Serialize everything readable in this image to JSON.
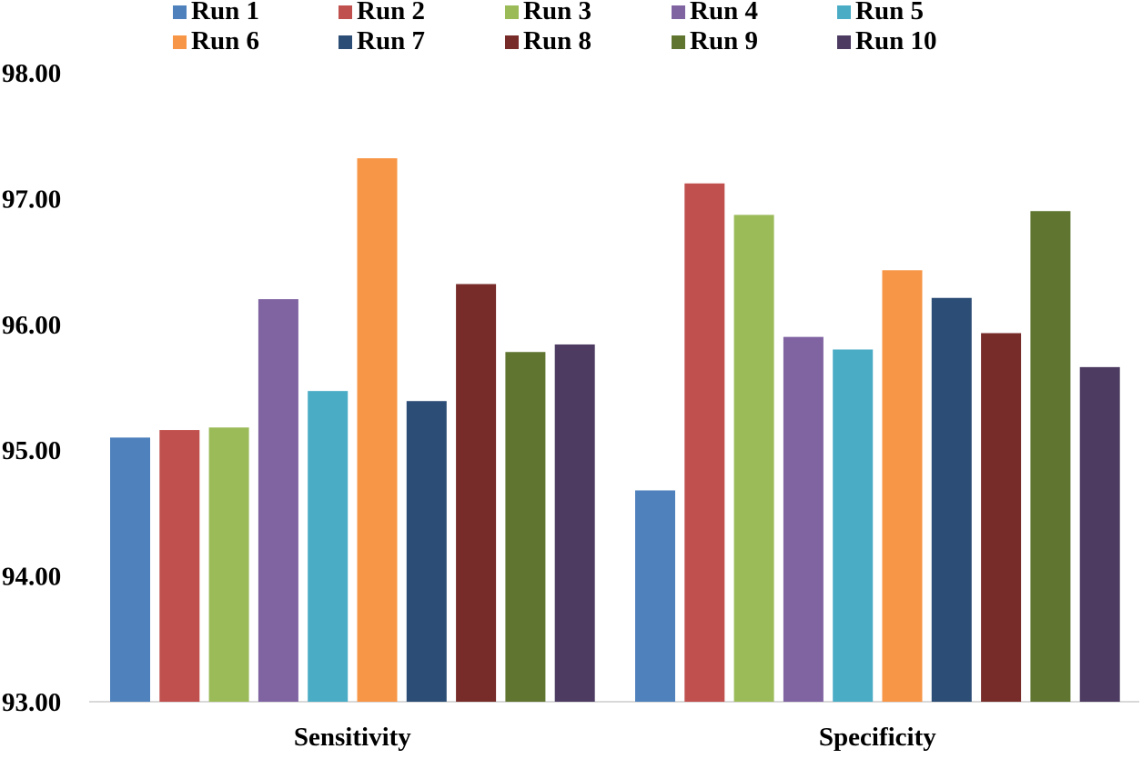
{
  "chart_data": {
    "type": "bar",
    "title": "",
    "xlabel": "",
    "ylabel": "",
    "ylim": [
      93.0,
      98.0
    ],
    "yticks": [
      "93.00",
      "94.00",
      "95.00",
      "96.00",
      "97.00",
      "98.00"
    ],
    "grid": false,
    "legend_position": "top",
    "categories": [
      "Sensitivity",
      "Specificity"
    ],
    "series": [
      {
        "name": "Run 1",
        "color": "#4F81BD",
        "values": [
          95.1,
          94.68
        ]
      },
      {
        "name": "Run 2",
        "color": "#C0504D",
        "values": [
          95.16,
          97.12
        ]
      },
      {
        "name": "Run 3",
        "color": "#9BBB59",
        "values": [
          95.18,
          96.87
        ]
      },
      {
        "name": "Run 4",
        "color": "#8064A2",
        "values": [
          96.2,
          95.9
        ]
      },
      {
        "name": "Run 5",
        "color": "#4BACC6",
        "values": [
          95.47,
          95.8
        ]
      },
      {
        "name": "Run 6",
        "color": "#F79646",
        "values": [
          97.32,
          96.43
        ]
      },
      {
        "name": "Run 7",
        "color": "#2C4D75",
        "values": [
          95.39,
          96.21
        ]
      },
      {
        "name": "Run 8",
        "color": "#772C2A",
        "values": [
          96.32,
          95.93
        ]
      },
      {
        "name": "Run 9",
        "color": "#5F7530",
        "values": [
          95.78,
          96.9
        ]
      },
      {
        "name": "Run 10",
        "color": "#4D3B62",
        "values": [
          95.84,
          95.66
        ]
      }
    ]
  }
}
